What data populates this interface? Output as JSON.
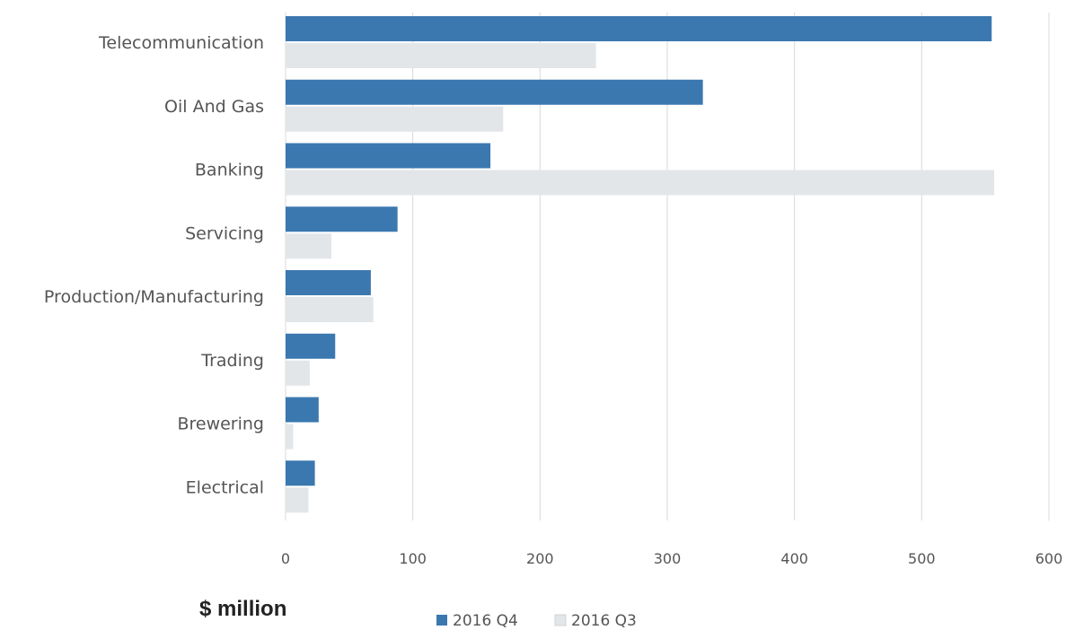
{
  "chart_data": {
    "type": "bar",
    "orientation": "horizontal",
    "categories": [
      "Telecommunication",
      "Oil And Gas",
      "Banking",
      "Servicing",
      "Production/Manufacturing",
      "Trading",
      "Brewering",
      "Electrical"
    ],
    "series": [
      {
        "name": "2016 Q4",
        "color": "#3b78b0",
        "values": [
          555,
          328,
          161,
          88,
          67,
          39,
          26,
          23
        ]
      },
      {
        "name": "2016 Q3",
        "color": "#e3e6e9",
        "values": [
          244,
          171,
          557,
          36,
          69,
          19,
          6,
          18
        ]
      }
    ],
    "xlim": [
      0,
      600
    ],
    "xticks": [
      0,
      100,
      200,
      300,
      400,
      500,
      600
    ],
    "xlabel": "$ million",
    "ylabel": "",
    "title": "",
    "grid": "vertical",
    "legend_position": "bottom"
  }
}
